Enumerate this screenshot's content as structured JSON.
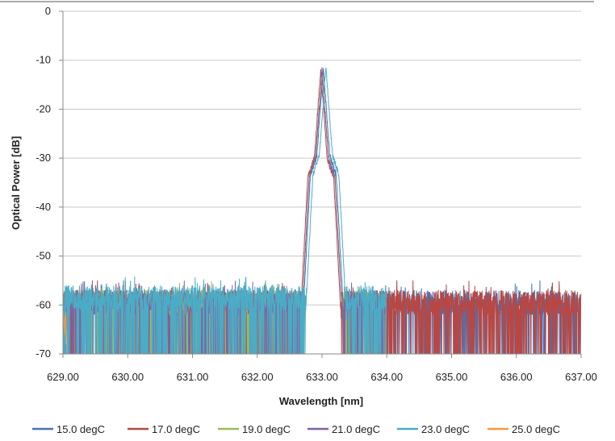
{
  "chart_data": {
    "type": "line",
    "title": "",
    "xlabel": "Wavelength [nm]",
    "ylabel": "Optical Power [dB]",
    "xlim": [
      629,
      637
    ],
    "ylim": [
      -70,
      0
    ],
    "x_ticks": [
      "629.00",
      "630.00",
      "631.00",
      "632.00",
      "633.00",
      "634.00",
      "635.00",
      "636.00",
      "637.00"
    ],
    "y_ticks": [
      "0",
      "-10",
      "-20",
      "-30",
      "-40",
      "-50",
      "-60",
      "-70"
    ],
    "grid": "horizontal",
    "legend_position": "bottom",
    "series": [
      {
        "name": "15.0 degC",
        "color": "#4a72b0",
        "peak_x": 633.02,
        "peak_y": -11.5,
        "noise_range": [
          629,
          637
        ],
        "noise_floor": -62,
        "noise_top": -57
      },
      {
        "name": "17.0 degC",
        "color": "#b84744",
        "peak_x": 632.98,
        "peak_y": -12.0,
        "noise_range": [
          629,
          637
        ],
        "noise_floor": -62,
        "noise_top": -57
      },
      {
        "name": "19.0 degC",
        "color": "#9bbb59",
        "peak_x": 633.0,
        "peak_y": -12.0,
        "noise_range": [
          629,
          634
        ],
        "noise_floor": -62,
        "noise_top": -57
      },
      {
        "name": "21.0 degC",
        "color": "#7f64a0",
        "peak_x": 633.0,
        "peak_y": -12.0,
        "noise_range": [
          629,
          634
        ],
        "noise_floor": -62,
        "noise_top": -57
      },
      {
        "name": "23.0 degC",
        "color": "#4bacc6",
        "peak_x": 633.06,
        "peak_y": -11.3,
        "noise_range": [
          629,
          634
        ],
        "noise_floor": -61,
        "noise_top": -56
      },
      {
        "name": "25.0 degC",
        "color": "#f79646",
        "peak_x": 629.0,
        "peak_y": -61,
        "noise_range": [
          629,
          629.05
        ],
        "noise_floor": -70,
        "noise_top": -61
      }
    ]
  }
}
